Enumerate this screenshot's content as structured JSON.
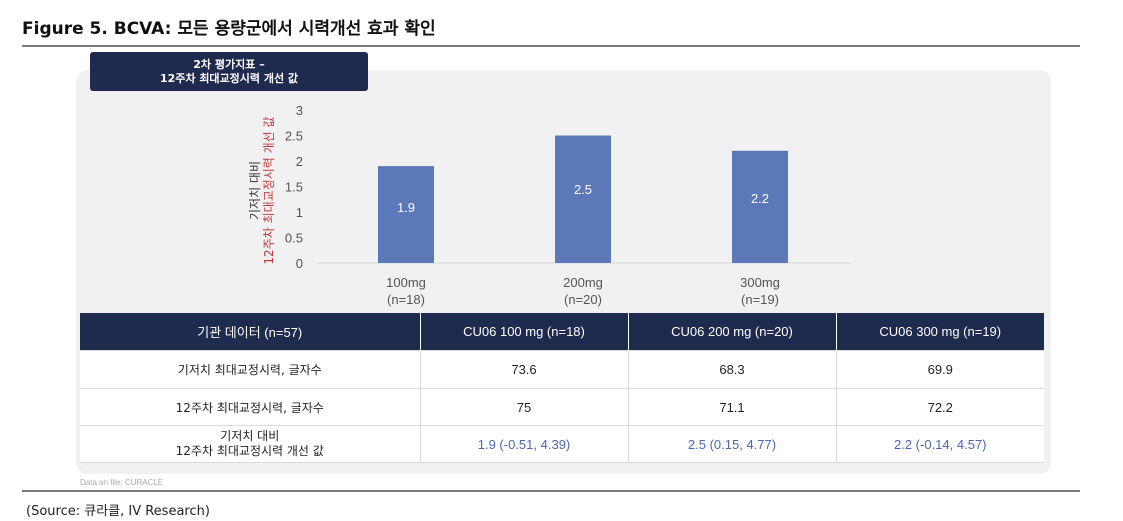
{
  "figure_title": "Figure 5. BCVA: 모든 용량군에서 시력개선 효과 확인",
  "endpoint_label": {
    "line1": "2차 평가지표 –",
    "line2": "12주차 최대교정시력 개선 값"
  },
  "chart_data": {
    "type": "bar",
    "categories": [
      {
        "dose": "100mg",
        "n": "(n=18)"
      },
      {
        "dose": "200mg",
        "n": "(n=20)"
      },
      {
        "dose": "300mg",
        "n": "(n=19)"
      }
    ],
    "values": [
      1.9,
      2.5,
      2.2
    ],
    "value_labels": [
      "1.9",
      "2.5",
      "2.2"
    ],
    "ylabel_line1": "기저치 대비",
    "ylabel_line2": "12주차 최대교정시력 개선 값",
    "ylim": [
      0,
      3
    ],
    "yticks": [
      "0",
      "0.5",
      "1",
      "1.5",
      "2",
      "2.5",
      "3"
    ],
    "bar_color": "#5b78b8",
    "ylabel_accent_color": "#c23b3b",
    "grid": false,
    "legend": "none"
  },
  "table": {
    "headers": [
      "기관 데이터 (n=57)",
      "CU06 100 mg (n=18)",
      "CU06 200 mg (n=20)",
      "CU06 300 mg (n=19)"
    ],
    "rows": [
      {
        "label": "기저치 최대교정시력, 글자수",
        "cells": [
          "73.6",
          "68.3",
          "69.9"
        ]
      },
      {
        "label": "12주차 최대교정시력, 글자수",
        "cells": [
          "75",
          "71.1",
          "72.2"
        ]
      },
      {
        "label_line1": "기저치 대비",
        "label_line2": "12주차 최대교정시력 개선 값",
        "cells": [
          "1.9 (-0.51, 4.39)",
          "2.5 (0.15, 4.77)",
          "2.2 (-0.14, 4.57)"
        ]
      }
    ],
    "header_color": "#1e2a4e",
    "ci_text_color": "#4a67b0"
  },
  "data_note": "Data on file: CURACLE",
  "source": "(Source: 큐라클, IV Research)"
}
